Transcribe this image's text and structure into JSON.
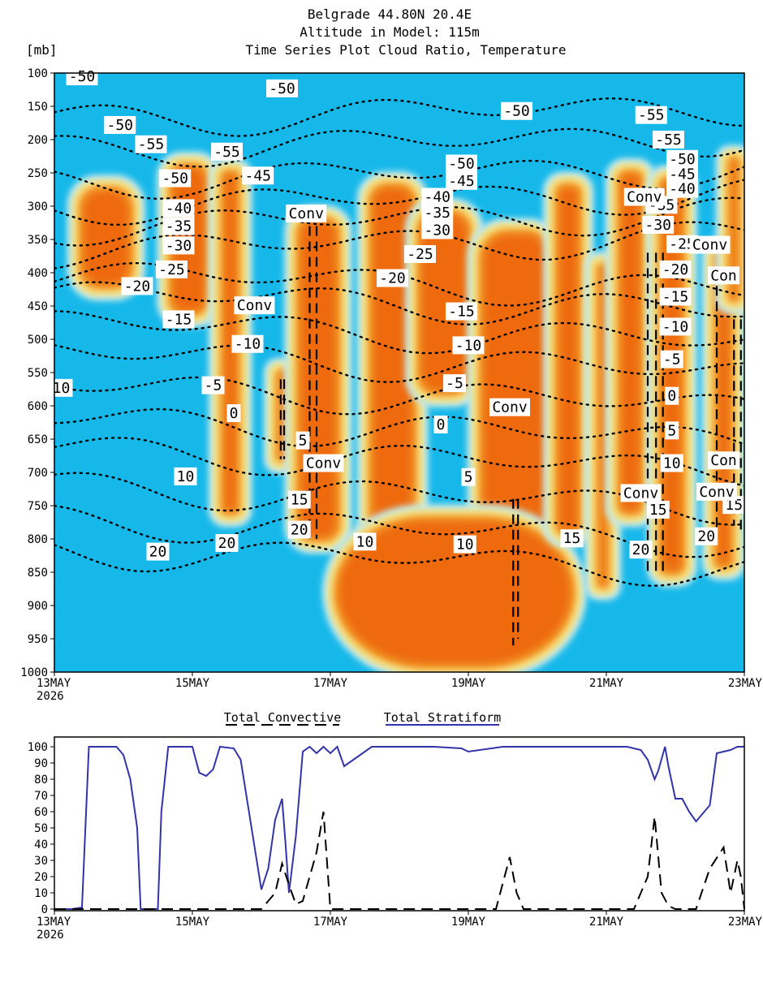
{
  "titles": {
    "line1": "Belgrade   44.80N 20.4E",
    "line2": "Altitude in Model: 115m",
    "line3": "Time Series Plot Cloud Ratio, Temperature",
    "yunit": "[mb]"
  },
  "colors": {
    "background_field": "#16b8ea",
    "cloud_low": "#bfe8ef",
    "cloud_mid": "#f8e07a",
    "cloud_high": "#f08c20",
    "cloud_core": "#ee6a10",
    "stratiform_line": "#3333aa",
    "convective_line": "#000000"
  },
  "chart_data": [
    {
      "type": "heatmap",
      "title": "Time Series Plot Cloud Ratio, Temperature",
      "ylabel": "[mb]",
      "x_ticks": [
        "13MAY",
        "15MAY",
        "17MAY",
        "19MAY",
        "21MAY",
        "23MAY"
      ],
      "x_year": "2026",
      "x_range_days": [
        13,
        23
      ],
      "y_ticks": [
        100,
        150,
        200,
        250,
        300,
        350,
        400,
        450,
        500,
        550,
        600,
        650,
        700,
        750,
        800,
        850,
        900,
        950,
        1000
      ],
      "y_range_mb": [
        100,
        1000
      ],
      "cloud_regions": [
        {
          "x": [
            13.3,
            14.2
          ],
          "y": [
            265,
            430
          ]
        },
        {
          "x": [
            14.6,
            15.3
          ],
          "y": [
            230,
            470
          ]
        },
        {
          "x": [
            15.35,
            15.75
          ],
          "y": [
            240,
            770
          ]
        },
        {
          "x": [
            16.15,
            16.45
          ],
          "y": [
            540,
            690
          ]
        },
        {
          "x": [
            16.45,
            17.2
          ],
          "y": [
            310,
            810
          ]
        },
        {
          "x": [
            17.5,
            18.3
          ],
          "y": [
            260,
            980
          ]
        },
        {
          "x": [
            18.2,
            19.1
          ],
          "y": [
            300,
            590
          ]
        },
        {
          "x": [
            19.1,
            20.3
          ],
          "y": [
            330,
            960
          ]
        },
        {
          "x": [
            17.0,
            20.6
          ],
          "y": [
            760,
            1000
          ]
        },
        {
          "x": [
            20.2,
            20.7
          ],
          "y": [
            260,
            800
          ]
        },
        {
          "x": [
            20.8,
            21.1
          ],
          "y": [
            380,
            880
          ]
        },
        {
          "x": [
            21.1,
            21.6
          ],
          "y": [
            240,
            770
          ]
        },
        {
          "x": [
            21.7,
            22.2
          ],
          "y": [
            250,
            860
          ]
        },
        {
          "x": [
            22.5,
            22.9
          ],
          "y": [
            360,
            850
          ]
        },
        {
          "x": [
            22.7,
            23.0
          ],
          "y": [
            220,
            450
          ]
        }
      ],
      "temperature_contour_labels": [
        {
          "text": "-50",
          "x": 13.4,
          "y": 105
        },
        {
          "text": "-50",
          "x": 16.3,
          "y": 123
        },
        {
          "text": "-50",
          "x": 13.95,
          "y": 178
        },
        {
          "text": "-50",
          "x": 19.7,
          "y": 157
        },
        {
          "text": "-55",
          "x": 14.4,
          "y": 207
        },
        {
          "text": "-55",
          "x": 15.5,
          "y": 218
        },
        {
          "text": "-55",
          "x": 21.65,
          "y": 163
        },
        {
          "text": "-55",
          "x": 21.9,
          "y": 200
        },
        {
          "text": "-50",
          "x": 14.75,
          "y": 258
        },
        {
          "text": "-45",
          "x": 15.95,
          "y": 254
        },
        {
          "text": "-50",
          "x": 18.9,
          "y": 236
        },
        {
          "text": "-45",
          "x": 18.9,
          "y": 262
        },
        {
          "text": "-40",
          "x": 18.55,
          "y": 286
        },
        {
          "text": "-35",
          "x": 18.55,
          "y": 310
        },
        {
          "text": "-30",
          "x": 18.55,
          "y": 336
        },
        {
          "text": "-25",
          "x": 18.3,
          "y": 372
        },
        {
          "text": "-20",
          "x": 17.9,
          "y": 408
        },
        {
          "text": "-15",
          "x": 18.9,
          "y": 458
        },
        {
          "text": "-10",
          "x": 19.0,
          "y": 509
        },
        {
          "text": "-5",
          "x": 18.8,
          "y": 566
        },
        {
          "text": "0",
          "x": 18.6,
          "y": 628
        },
        {
          "text": "5",
          "x": 19.0,
          "y": 707
        },
        {
          "text": "-40",
          "x": 14.8,
          "y": 303
        },
        {
          "text": "-35",
          "x": 14.8,
          "y": 330
        },
        {
          "text": "-30",
          "x": 14.8,
          "y": 359
        },
        {
          "text": "-25",
          "x": 14.7,
          "y": 395
        },
        {
          "text": "-20",
          "x": 14.2,
          "y": 420
        },
        {
          "text": "-15",
          "x": 14.8,
          "y": 470
        },
        {
          "text": "-10",
          "x": 15.8,
          "y": 507
        },
        {
          "text": "-5",
          "x": 15.3,
          "y": 569
        },
        {
          "text": "0",
          "x": 15.6,
          "y": 611
        },
        {
          "text": "5",
          "x": 16.6,
          "y": 652
        },
        {
          "text": "10",
          "x": 13.1,
          "y": 573
        },
        {
          "text": "10",
          "x": 14.9,
          "y": 706
        },
        {
          "text": "15",
          "x": 16.55,
          "y": 741
        },
        {
          "text": "20",
          "x": 16.55,
          "y": 786
        },
        {
          "text": "20",
          "x": 15.5,
          "y": 806
        },
        {
          "text": "20",
          "x": 14.5,
          "y": 819
        },
        {
          "text": "10",
          "x": 17.5,
          "y": 804
        },
        {
          "text": "10",
          "x": 18.95,
          "y": 808
        },
        {
          "text": "15",
          "x": 20.5,
          "y": 799
        },
        {
          "text": "20",
          "x": 21.5,
          "y": 816
        },
        {
          "text": "-50",
          "x": 22.1,
          "y": 229
        },
        {
          "text": "-45",
          "x": 22.1,
          "y": 252
        },
        {
          "text": "-40",
          "x": 22.1,
          "y": 274
        },
        {
          "text": "-35",
          "x": 21.8,
          "y": 298
        },
        {
          "text": "-30",
          "x": 21.75,
          "y": 328
        },
        {
          "text": "-25",
          "x": 22.1,
          "y": 357
        },
        {
          "text": "-20",
          "x": 22.0,
          "y": 395
        },
        {
          "text": "-15",
          "x": 22.0,
          "y": 436
        },
        {
          "text": "-10",
          "x": 22.0,
          "y": 481
        },
        {
          "text": "-5",
          "x": 21.95,
          "y": 530
        },
        {
          "text": "0",
          "x": 21.95,
          "y": 585
        },
        {
          "text": "5",
          "x": 21.95,
          "y": 637
        },
        {
          "text": "10",
          "x": 21.95,
          "y": 686
        },
        {
          "text": "15",
          "x": 21.75,
          "y": 756
        },
        {
          "text": "15",
          "x": 22.85,
          "y": 749
        },
        {
          "text": "20",
          "x": 22.45,
          "y": 796
        }
      ],
      "annotations": [
        {
          "text": "Conv",
          "x": 16.65,
          "y": 311
        },
        {
          "text": "Conv",
          "x": 15.9,
          "y": 449
        },
        {
          "text": "Conv",
          "x": 16.9,
          "y": 686
        },
        {
          "text": "Conv",
          "x": 19.6,
          "y": 602
        },
        {
          "text": "Conv",
          "x": 21.55,
          "y": 286
        },
        {
          "text": "Conv",
          "x": 22.5,
          "y": 358
        },
        {
          "text": "Con",
          "x": 22.7,
          "y": 404
        },
        {
          "text": "Con",
          "x": 22.7,
          "y": 682
        },
        {
          "text": "Conv",
          "x": 21.5,
          "y": 731
        },
        {
          "text": "Conv",
          "x": 22.6,
          "y": 729
        }
      ]
    },
    {
      "type": "line",
      "x_ticks": [
        "13MAY",
        "15MAY",
        "17MAY",
        "19MAY",
        "21MAY",
        "23MAY"
      ],
      "x_year": "2026",
      "x_range_days": [
        13,
        23
      ],
      "y_ticks": [
        0,
        10,
        20,
        30,
        40,
        50,
        60,
        70,
        80,
        90,
        100
      ],
      "ylim": [
        0,
        100
      ],
      "series": [
        {
          "name": "Total Stratiform",
          "x": [
            13.0,
            13.25,
            13.4,
            13.5,
            13.6,
            13.9,
            14.0,
            14.1,
            14.2,
            14.25,
            14.3,
            14.5,
            14.55,
            14.65,
            14.9,
            15.0,
            15.1,
            15.2,
            15.3,
            15.4,
            15.6,
            15.7,
            16.0,
            16.1,
            16.2,
            16.3,
            16.35,
            16.4,
            16.5,
            16.6,
            16.7,
            16.8,
            16.9,
            17.0,
            17.1,
            17.2,
            17.6,
            18.0,
            18.5,
            18.9,
            19.0,
            19.5,
            20.0,
            20.5,
            21.0,
            21.3,
            21.5,
            21.6,
            21.7,
            21.75,
            21.85,
            21.9,
            22.0,
            22.1,
            22.2,
            22.3,
            22.5,
            22.6,
            22.7,
            22.8,
            22.9,
            23.0
          ],
          "values": [
            0,
            0,
            1,
            100,
            100,
            100,
            95,
            80,
            50,
            0,
            0,
            0,
            60,
            100,
            100,
            100,
            84,
            82,
            86,
            100,
            99,
            92,
            12,
            25,
            55,
            68,
            40,
            10,
            45,
            97,
            100,
            96,
            100,
            96,
            100,
            88,
            100,
            100,
            100,
            99,
            97,
            100,
            100,
            100,
            100,
            100,
            98,
            92,
            80,
            85,
            100,
            88,
            68,
            68,
            60,
            54,
            64,
            96,
            97,
            98,
            100,
            100
          ]
        },
        {
          "name": "Total Convective",
          "x": [
            13.0,
            13.25,
            13.4,
            13.5,
            14.0,
            14.5,
            15.0,
            15.5,
            16.0,
            16.1,
            16.2,
            16.3,
            16.4,
            16.5,
            16.6,
            16.7,
            16.8,
            16.9,
            17.0,
            17.5,
            18.0,
            18.5,
            19.0,
            19.4,
            19.6,
            19.7,
            19.8,
            20.0,
            20.5,
            21.0,
            21.2,
            21.4,
            21.6,
            21.7,
            21.8,
            21.9,
            22.0,
            22.3,
            22.5,
            22.7,
            22.8,
            22.9,
            22.95,
            23.0
          ],
          "values": [
            0,
            0,
            0,
            0,
            0,
            0,
            0,
            0,
            0,
            5,
            10,
            28,
            15,
            3,
            5,
            20,
            35,
            60,
            0,
            0,
            0,
            0,
            0,
            0,
            32,
            10,
            0,
            0,
            0,
            0,
            0,
            0,
            20,
            57,
            10,
            2,
            0,
            0,
            25,
            38,
            10,
            30,
            20,
            0
          ]
        }
      ],
      "legend": [
        "Total Convective",
        "Total Stratiform"
      ],
      "legend_placement": "top-center"
    }
  ]
}
